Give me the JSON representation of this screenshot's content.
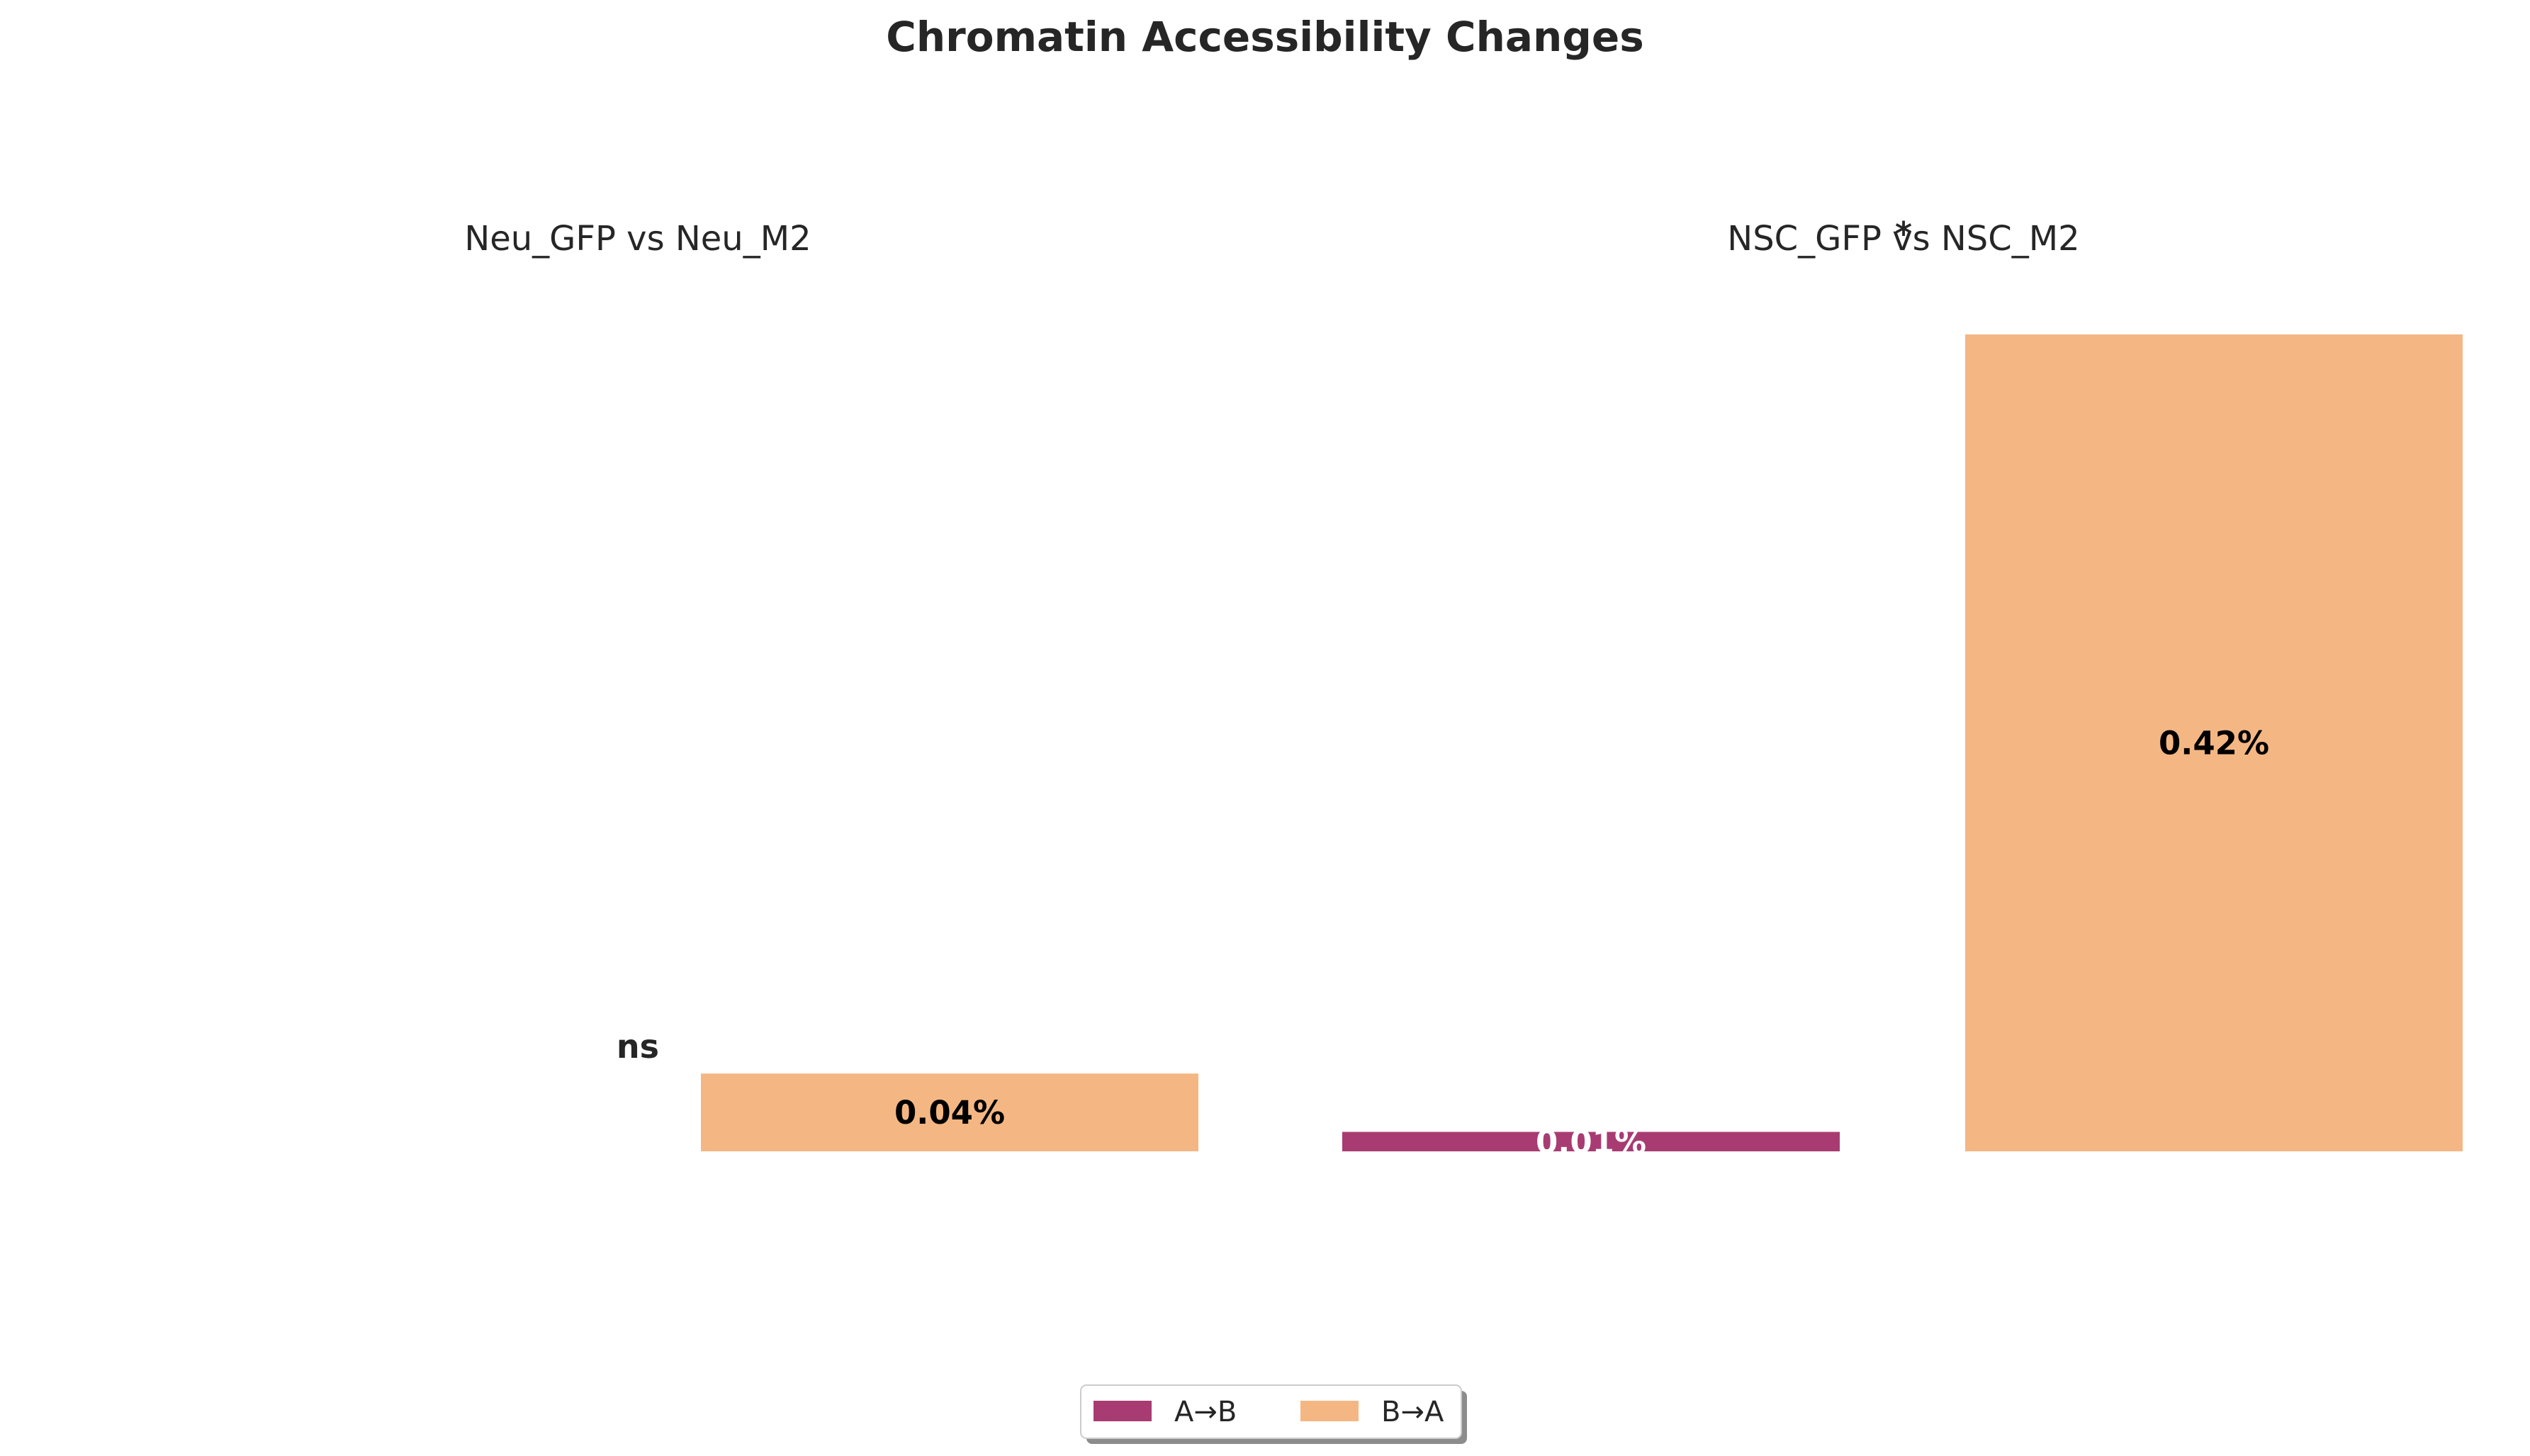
{
  "chart_data": {
    "type": "bar",
    "title": "Chromatin Accessibility Changes",
    "series": [
      {
        "name": "A→B",
        "color": "#a83c72"
      },
      {
        "name": "B→A",
        "color": "#f4b783"
      }
    ],
    "panels": [
      {
        "title": "Neu_GFP vs Neu_M2",
        "significance": "ns",
        "significance_marker": "",
        "values": {
          "A→B": null,
          "B→A": 0.04
        },
        "value_labels": {
          "A→B": "",
          "B→A": "0.04%"
        }
      },
      {
        "title": "NSC_GFP vs NSC_M2",
        "significance": "",
        "significance_marker": "*",
        "values": {
          "A→B": 0.01,
          "B→A": 0.42
        },
        "value_labels": {
          "A→B": "0.01%",
          "B→A": "0.42%"
        }
      }
    ],
    "unit": "%",
    "ylim": [
      0,
      0.42
    ],
    "grid": false,
    "axes_visible": false,
    "legend": {
      "placement": "bottom-center",
      "ncol": 2,
      "shadow": true
    }
  }
}
